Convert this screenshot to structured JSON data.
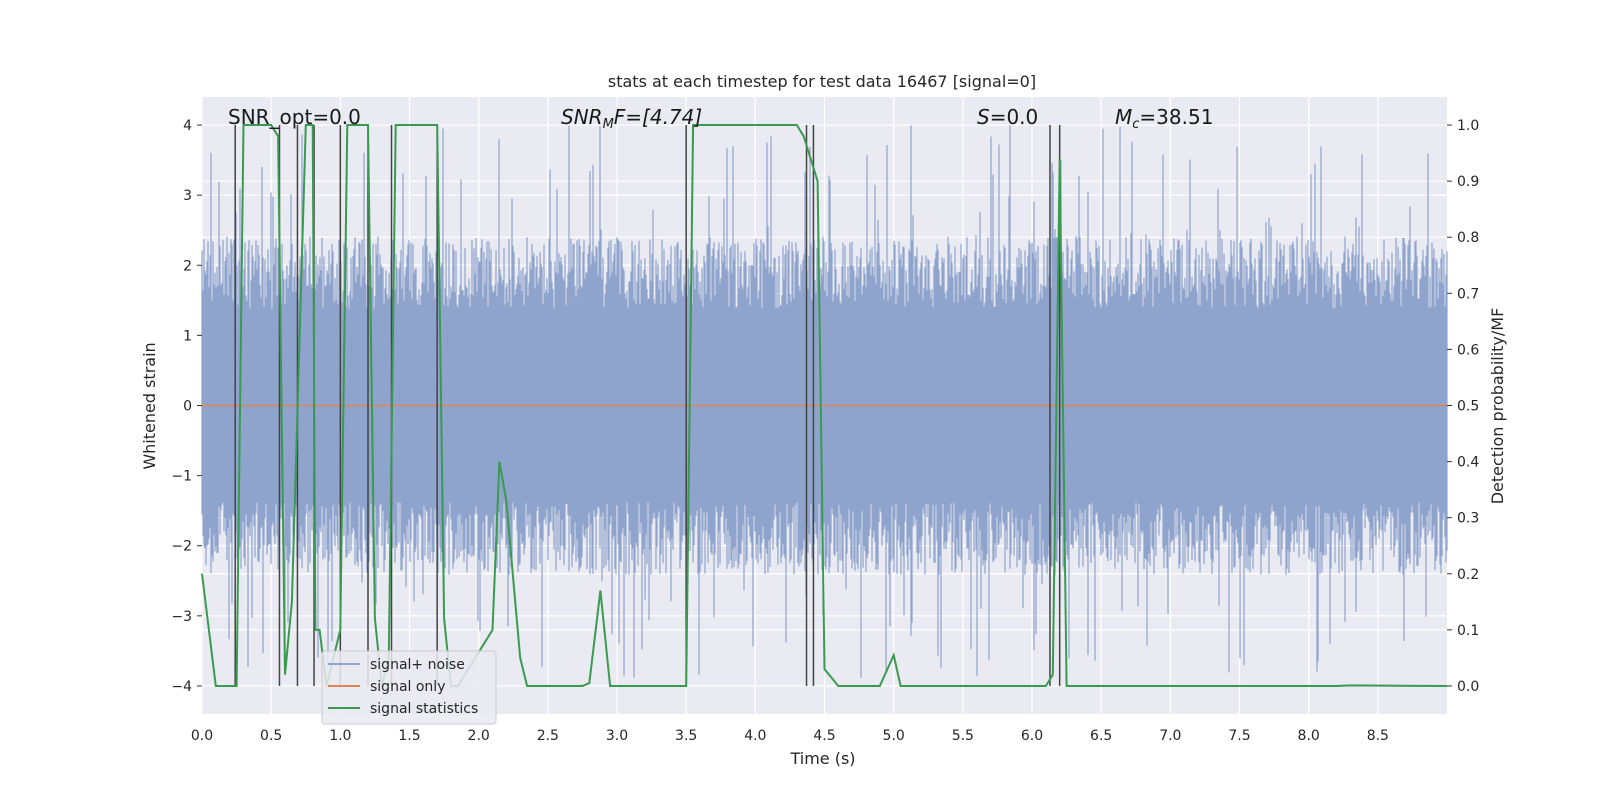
{
  "chart_data": {
    "type": "line",
    "title": "stats at each timestep for test data 16467 [signal=0]",
    "xlabel": "Time (s)",
    "ylabel_left": "Whitened strain",
    "ylabel_right": "Detection probability/MF",
    "xlim": [
      0.0,
      9.0
    ],
    "ylim_left": [
      -4.4,
      4.4
    ],
    "ylim_right": [
      -0.05,
      1.05
    ],
    "xticks": [
      "0.0",
      "0.5",
      "1.0",
      "1.5",
      "2.0",
      "2.5",
      "3.0",
      "3.5",
      "4.0",
      "4.5",
      "5.0",
      "5.5",
      "6.0",
      "6.5",
      "7.0",
      "7.5",
      "8.0",
      "8.5"
    ],
    "yticks_left": [
      "4",
      "3",
      "2",
      "1",
      "0",
      "−1",
      "−2",
      "−3",
      "−4"
    ],
    "yticks_right": [
      "1.0",
      "0.9",
      "0.8",
      "0.7",
      "0.6",
      "0.5",
      "0.4",
      "0.3",
      "0.2",
      "0.1",
      "0.0"
    ],
    "annotations": {
      "snr_opt": "SNR_opt=0.0",
      "snr_mf": "SNR",
      "snr_mf_sub": "M",
      "snr_mf_rest": "F=[4.74]",
      "s_label": "S",
      "s_rest": "=0.0",
      "mc_label": "M",
      "mc_sub": "c",
      "mc_rest": "=38.51"
    },
    "legend": {
      "position": "lower-left",
      "entries": [
        "signal+ noise",
        "signal only",
        "signal statistics"
      ]
    },
    "colors": {
      "noise": "#8fa4cc",
      "signal": "#dd8452",
      "stats": "#3a9a50",
      "vline": "#444444",
      "background": "#eaeaf2",
      "grid": "#ffffff"
    },
    "series": [
      {
        "name": "signal+ noise",
        "description": "whitened strain, dense noise approximately within ±2 with spikes up to about ±4",
        "envelope": {
          "upper_typical": 2.3,
          "lower_typical": -2.3,
          "upper_peak": 4.0,
          "lower_peak": -3.9
        }
      },
      {
        "name": "signal only",
        "x": [
          0.0,
          9.0
        ],
        "y": [
          0.0,
          0.0
        ]
      },
      {
        "name": "signal statistics",
        "x": [
          0.0,
          0.05,
          0.1,
          0.2,
          0.25,
          0.3,
          0.5,
          0.55,
          0.6,
          0.65,
          0.75,
          0.8,
          0.82,
          0.85,
          0.9,
          1.0,
          1.05,
          1.2,
          1.25,
          1.3,
          1.35,
          1.4,
          1.45,
          1.7,
          1.75,
          1.8,
          1.85,
          2.1,
          2.15,
          2.2,
          2.3,
          2.35,
          2.75,
          2.8,
          2.88,
          2.95,
          3.5,
          3.55,
          4.3,
          4.35,
          4.45,
          4.5,
          4.6,
          4.9,
          5.0,
          5.05,
          6.1,
          6.15,
          6.2,
          6.25,
          8.2,
          8.3,
          9.0
        ],
        "y": [
          0.2,
          0.1,
          0.0,
          0.0,
          0.0,
          1.0,
          1.0,
          0.98,
          0.02,
          0.15,
          1.0,
          1.0,
          0.1,
          0.1,
          0.0,
          0.1,
          1.0,
          1.0,
          0.12,
          0.0,
          0.05,
          1.0,
          1.0,
          1.0,
          0.12,
          0.0,
          0.0,
          0.1,
          0.4,
          0.33,
          0.05,
          0.0,
          0.0,
          0.005,
          0.17,
          0.0,
          0.0,
          1.0,
          1.0,
          0.98,
          0.9,
          0.03,
          0.0,
          0.0,
          0.055,
          0.0,
          0.0,
          0.02,
          0.94,
          0.0,
          0.0,
          0.001,
          0.0
        ]
      }
    ],
    "vlines_x": [
      0.24,
      0.56,
      0.69,
      0.81,
      1.0,
      1.2,
      1.37,
      1.7,
      3.5,
      4.37,
      4.42,
      6.13,
      6.2
    ]
  }
}
